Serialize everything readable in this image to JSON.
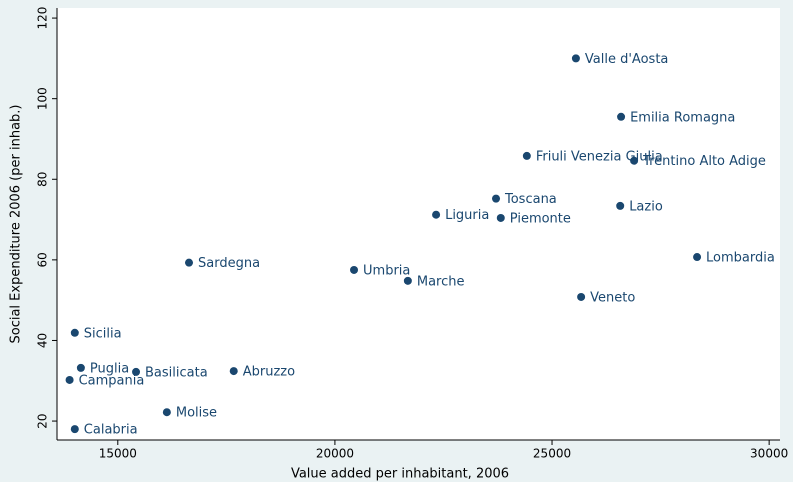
{
  "chart_data": {
    "type": "scatter",
    "xlabel": "Value added per inhabitant, 2006",
    "ylabel": "Social Expenditure 2006 (per inhab.)",
    "color": "#1a476f",
    "labels": [
      "Valle d'Aosta",
      "Emilia Romagna",
      "Friuli Venezia Giulia",
      "Trentino Alto Adige",
      "Toscana",
      "Liguria",
      "Piemonte",
      "Lazio",
      "Lombardia",
      "Sardegna",
      "Umbria",
      "Marche",
      "Veneto",
      "Sicilia",
      "Puglia",
      "Basilicata",
      "Abruzzo",
      "Campania",
      "Molise",
      "Calabria"
    ],
    "x": [
      25550,
      26590,
      24420,
      26890,
      23710,
      22330,
      23820,
      26570,
      28340,
      16640,
      20440,
      21680,
      25670,
      14010,
      14150,
      15420,
      17670,
      13890,
      16130,
      14010
    ],
    "values": [
      110,
      95.5,
      85.8,
      84.6,
      75.2,
      71.2,
      70.4,
      73.4,
      60.7,
      59.3,
      57.5,
      54.8,
      50.8,
      41.9,
      33.2,
      32.2,
      32.4,
      30.2,
      22.2,
      18
    ],
    "xlim": [
      13600,
      30250
    ],
    "xticks": [
      15000,
      20000,
      25000,
      30000
    ],
    "ylim": [
      15.3,
      122.5
    ],
    "yticks": [
      20,
      40,
      60,
      80,
      100,
      120
    ]
  }
}
